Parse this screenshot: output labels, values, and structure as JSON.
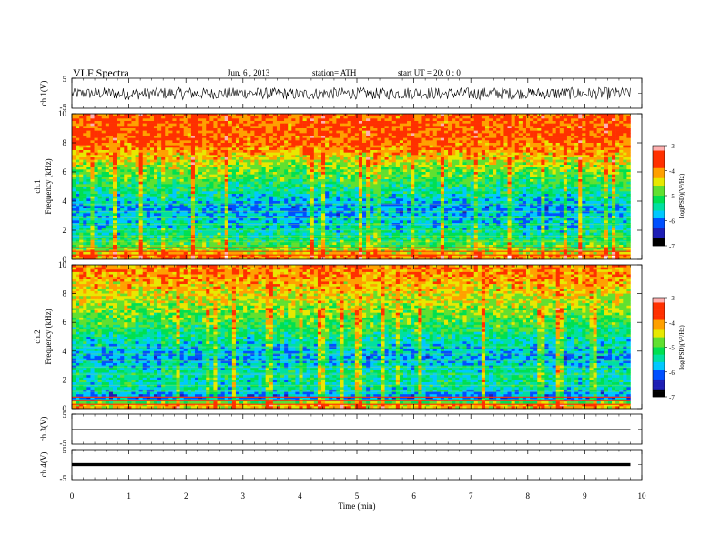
{
  "header": {
    "title": "VLF Spectra",
    "date": "Jun. 6 , 2013",
    "station": "station= ATH",
    "start_ut": "start UT = 20: 0 : 0"
  },
  "colors": {
    "background": "#ffffff",
    "axis": "#000000",
    "colormap": [
      "#000000",
      "#1e1eb4",
      "#0050ff",
      "#00c8ff",
      "#00e0a0",
      "#00e050",
      "#60e030",
      "#e8e800",
      "#ffa000",
      "#ff3000",
      "#ffb0b0",
      "#ffffff"
    ]
  },
  "chart_data": [
    {
      "type": "line",
      "name": "ch1-waveform",
      "ylabel": "ch.1(V)",
      "yticks": [
        "5",
        "-5"
      ],
      "ylim": [
        -5,
        5
      ],
      "xlim": [
        0,
        10
      ],
      "x": [
        0,
        0.5,
        1,
        1.5,
        2,
        2.5,
        3,
        3.5,
        4,
        4.5,
        5,
        5.5,
        6,
        6.5,
        7,
        7.5,
        8,
        8.5,
        9,
        9.5,
        9.8
      ],
      "y_min": [
        -1.8,
        -2.0,
        -2.2,
        -1.9,
        -2.1,
        -2.0,
        -1.8,
        -2.0,
        -2.3,
        -1.9,
        -2.0,
        -2.1,
        -1.9,
        -2.0,
        -2.2,
        -2.0,
        -1.9,
        -2.1,
        -2.0,
        -2.2,
        -1.9
      ],
      "y_max": [
        1.6,
        2.0,
        1.8,
        1.9,
        2.1,
        1.7,
        2.0,
        1.8,
        1.6,
        2.0,
        1.9,
        1.7,
        2.2,
        1.8,
        1.9,
        2.0,
        1.7,
        2.0,
        1.9,
        2.0,
        1.8
      ]
    },
    {
      "type": "heatmap",
      "name": "ch1-spectrogram",
      "ylabel": "ch.1\nFrequency (kHz)",
      "yticks": [
        "0",
        "2",
        "4",
        "6",
        "8",
        "10"
      ],
      "ylim": [
        0,
        10
      ],
      "xlim": [
        0,
        10
      ],
      "data_end_min": 9.8,
      "colorbar": {
        "label": "log(PSD)(V²/Hz)",
        "ticks": [
          "-3",
          "-4",
          "-5",
          "-6",
          "-7"
        ],
        "range": [
          -7,
          -3
        ]
      },
      "freq_khz": [
        0.25,
        0.75,
        1.5,
        2.5,
        3.5,
        4.5,
        5.5,
        6.5,
        7.5,
        8.5,
        9.5
      ],
      "mean_log_psd": [
        -4.2,
        -5.0,
        -5.4,
        -5.8,
        -6.0,
        -5.6,
        -5.2,
        -4.8,
        -4.1,
        -3.9,
        -3.9
      ]
    },
    {
      "type": "heatmap",
      "name": "ch2-spectrogram",
      "ylabel": "ch.2\nFrequency (kHz)",
      "yticks": [
        "0",
        "2",
        "4",
        "6",
        "8",
        "10"
      ],
      "ylim": [
        0,
        10
      ],
      "xlim": [
        0,
        10
      ],
      "data_end_min": 9.8,
      "colorbar": {
        "label": "log(PSD)(V²/Hz)",
        "ticks": [
          "-3",
          "-4",
          "-5",
          "-6",
          "-7"
        ],
        "range": [
          -7,
          -3
        ]
      },
      "freq_khz": [
        0.25,
        0.75,
        1.5,
        2.5,
        3.5,
        4.5,
        5.5,
        6.5,
        7.5,
        8.5,
        9.5
      ],
      "mean_log_psd": [
        -4.4,
        -6.2,
        -5.6,
        -5.5,
        -6.0,
        -5.7,
        -5.3,
        -5.0,
        -4.6,
        -4.3,
        -4.1
      ]
    },
    {
      "type": "line",
      "name": "ch3-waveform",
      "ylabel": "ch.3(V)",
      "yticks": [
        "5",
        "-5"
      ],
      "ylim": [
        -5,
        5
      ],
      "xlim": [
        0,
        10
      ],
      "x": [
        0,
        9.8
      ],
      "y": [
        0,
        0
      ]
    },
    {
      "type": "line",
      "name": "ch4-waveform",
      "ylabel": "ch.4(V)",
      "yticks": [
        "5",
        "-5"
      ],
      "ylim": [
        -5,
        5
      ],
      "xlim": [
        0,
        10
      ],
      "x": [
        0,
        9.8
      ],
      "y_min": [
        -0.5,
        -0.5
      ],
      "y_max": [
        0.5,
        0.5
      ]
    }
  ],
  "x_axis": {
    "label": "Time (min)",
    "ticks": [
      "0",
      "1",
      "2",
      "3",
      "4",
      "5",
      "6",
      "7",
      "8",
      "9",
      "10"
    ]
  }
}
